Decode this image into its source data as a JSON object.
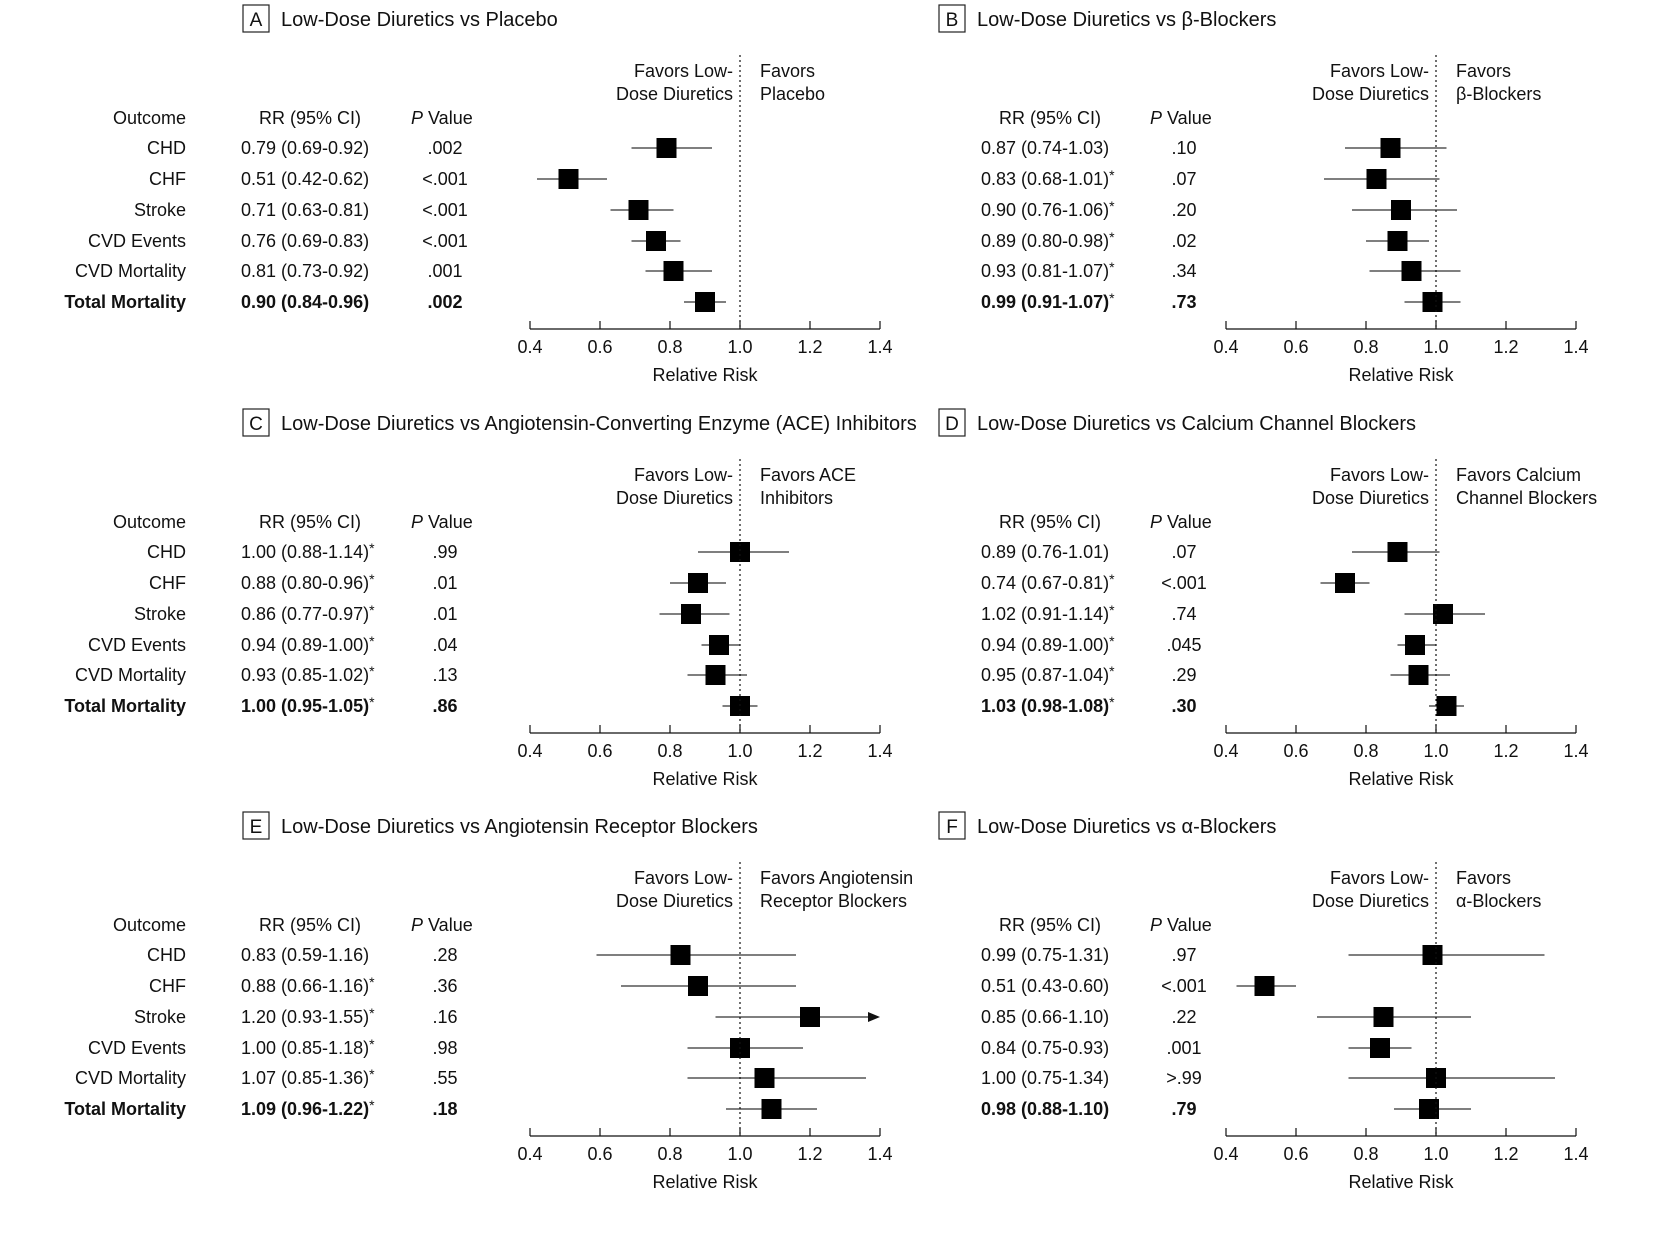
{
  "header_labels": {
    "outcome": "Outcome",
    "rr": "RR (95% CI)",
    "p_italic": "P",
    "p_rest": " Value"
  },
  "axis": {
    "ticks": [
      "0.4",
      "0.6",
      "0.8",
      "1.0",
      "1.2",
      "1.4"
    ],
    "label": "Relative Risk"
  },
  "outcomes": [
    "CHD",
    "CHF",
    "Stroke",
    "CVD Events",
    "CVD Mortality",
    "Total Mortality"
  ],
  "chart_data": [
    {
      "type": "forest",
      "panel": "A",
      "title": "Low-Dose Diuretics vs Placebo",
      "xlabel": "Relative Risk",
      "xlim": [
        0.4,
        1.4
      ],
      "reference_line": 1.0,
      "favors_left": [
        "Favors Low-",
        "Dose Diuretics"
      ],
      "favors_right": [
        "Favors",
        "Placebo"
      ],
      "rows": [
        {
          "outcome": "CHD",
          "rr": 0.79,
          "lo": 0.69,
          "hi": 0.92,
          "rr_text": "0.79 (0.69-0.92)",
          "star": false,
          "p": ".002",
          "bold": false
        },
        {
          "outcome": "CHF",
          "rr": 0.51,
          "lo": 0.42,
          "hi": 0.62,
          "rr_text": "0.51 (0.42-0.62)",
          "star": false,
          "p": "<.001",
          "bold": false
        },
        {
          "outcome": "Stroke",
          "rr": 0.71,
          "lo": 0.63,
          "hi": 0.81,
          "rr_text": "0.71 (0.63-0.81)",
          "star": false,
          "p": "<.001",
          "bold": false
        },
        {
          "outcome": "CVD Events",
          "rr": 0.76,
          "lo": 0.69,
          "hi": 0.83,
          "rr_text": "0.76 (0.69-0.83)",
          "star": false,
          "p": "<.001",
          "bold": false
        },
        {
          "outcome": "CVD Mortality",
          "rr": 0.81,
          "lo": 0.73,
          "hi": 0.92,
          "rr_text": "0.81 (0.73-0.92)",
          "star": false,
          "p": ".001",
          "bold": false
        },
        {
          "outcome": "Total Mortality",
          "rr": 0.9,
          "lo": 0.84,
          "hi": 0.96,
          "rr_text": "0.90 (0.84-0.96)",
          "star": false,
          "p": ".002",
          "bold": true
        }
      ]
    },
    {
      "type": "forest",
      "panel": "B",
      "title": "Low-Dose Diuretics vs β-Blockers",
      "xlabel": "Relative Risk",
      "xlim": [
        0.4,
        1.4
      ],
      "reference_line": 1.0,
      "favors_left": [
        "Favors Low-",
        "Dose Diuretics"
      ],
      "favors_right": [
        "Favors",
        "β-Blockers"
      ],
      "rows": [
        {
          "outcome": "CHD",
          "rr": 0.87,
          "lo": 0.74,
          "hi": 1.03,
          "rr_text": "0.87 (0.74-1.03)",
          "star": false,
          "p": ".10",
          "bold": false
        },
        {
          "outcome": "CHF",
          "rr": 0.83,
          "lo": 0.68,
          "hi": 1.01,
          "rr_text": "0.83 (0.68-1.01)",
          "star": true,
          "p": ".07",
          "bold": false
        },
        {
          "outcome": "Stroke",
          "rr": 0.9,
          "lo": 0.76,
          "hi": 1.06,
          "rr_text": "0.90 (0.76-1.06)",
          "star": true,
          "p": ".20",
          "bold": false
        },
        {
          "outcome": "CVD Events",
          "rr": 0.89,
          "lo": 0.8,
          "hi": 0.98,
          "rr_text": "0.89 (0.80-0.98)",
          "star": true,
          "p": ".02",
          "bold": false
        },
        {
          "outcome": "CVD Mortality",
          "rr": 0.93,
          "lo": 0.81,
          "hi": 1.07,
          "rr_text": "0.93 (0.81-1.07)",
          "star": true,
          "p": ".34",
          "bold": false
        },
        {
          "outcome": "Total Mortality",
          "rr": 0.99,
          "lo": 0.91,
          "hi": 1.07,
          "rr_text": "0.99 (0.91-1.07)",
          "star": true,
          "p": ".73",
          "bold": true
        }
      ]
    },
    {
      "type": "forest",
      "panel": "C",
      "title": "Low-Dose Diuretics vs Angiotensin-Converting Enzyme (ACE) Inhibitors",
      "xlabel": "Relative Risk",
      "xlim": [
        0.4,
        1.4
      ],
      "reference_line": 1.0,
      "favors_left": [
        "Favors Low-",
        "Dose Diuretics"
      ],
      "favors_right": [
        "Favors ACE",
        "Inhibitors"
      ],
      "rows": [
        {
          "outcome": "CHD",
          "rr": 1.0,
          "lo": 0.88,
          "hi": 1.14,
          "rr_text": "1.00 (0.88-1.14)",
          "star": true,
          "p": ".99",
          "bold": false
        },
        {
          "outcome": "CHF",
          "rr": 0.88,
          "lo": 0.8,
          "hi": 0.96,
          "rr_text": "0.88 (0.80-0.96)",
          "star": true,
          "p": ".01",
          "bold": false
        },
        {
          "outcome": "Stroke",
          "rr": 0.86,
          "lo": 0.77,
          "hi": 0.97,
          "rr_text": "0.86 (0.77-0.97)",
          "star": true,
          "p": ".01",
          "bold": false
        },
        {
          "outcome": "CVD Events",
          "rr": 0.94,
          "lo": 0.89,
          "hi": 1.0,
          "rr_text": "0.94 (0.89-1.00)",
          "star": true,
          "p": ".04",
          "bold": false
        },
        {
          "outcome": "CVD Mortality",
          "rr": 0.93,
          "lo": 0.85,
          "hi": 1.02,
          "rr_text": "0.93 (0.85-1.02)",
          "star": true,
          "p": ".13",
          "bold": false
        },
        {
          "outcome": "Total Mortality",
          "rr": 1.0,
          "lo": 0.95,
          "hi": 1.05,
          "rr_text": "1.00 (0.95-1.05)",
          "star": true,
          "p": ".86",
          "bold": true
        }
      ]
    },
    {
      "type": "forest",
      "panel": "D",
      "title": "Low-Dose Diuretics vs Calcium Channel Blockers",
      "xlabel": "Relative Risk",
      "xlim": [
        0.4,
        1.4
      ],
      "reference_line": 1.0,
      "favors_left": [
        "Favors Low-",
        "Dose Diuretics"
      ],
      "favors_right": [
        "Favors Calcium",
        "Channel Blockers"
      ],
      "rows": [
        {
          "outcome": "CHD",
          "rr": 0.89,
          "lo": 0.76,
          "hi": 1.01,
          "rr_text": "0.89 (0.76-1.01)",
          "star": false,
          "p": ".07",
          "bold": false
        },
        {
          "outcome": "CHF",
          "rr": 0.74,
          "lo": 0.67,
          "hi": 0.81,
          "rr_text": "0.74 (0.67-0.81)",
          "star": true,
          "p": "<.001",
          "bold": false
        },
        {
          "outcome": "Stroke",
          "rr": 1.02,
          "lo": 0.91,
          "hi": 1.14,
          "rr_text": "1.02 (0.91-1.14)",
          "star": true,
          "p": ".74",
          "bold": false
        },
        {
          "outcome": "CVD Events",
          "rr": 0.94,
          "lo": 0.89,
          "hi": 1.0,
          "rr_text": "0.94 (0.89-1.00)",
          "star": true,
          "p": ".045",
          "bold": false
        },
        {
          "outcome": "CVD Mortality",
          "rr": 0.95,
          "lo": 0.87,
          "hi": 1.04,
          "rr_text": "0.95 (0.87-1.04)",
          "star": true,
          "p": ".29",
          "bold": false
        },
        {
          "outcome": "Total Mortality",
          "rr": 1.03,
          "lo": 0.98,
          "hi": 1.08,
          "rr_text": "1.03 (0.98-1.08)",
          "star": true,
          "p": ".30",
          "bold": true
        }
      ]
    },
    {
      "type": "forest",
      "panel": "E",
      "title": "Low-Dose Diuretics vs Angiotensin Receptor Blockers",
      "xlabel": "Relative Risk",
      "xlim": [
        0.4,
        1.4
      ],
      "reference_line": 1.0,
      "favors_left": [
        "Favors Low-",
        "Dose Diuretics"
      ],
      "favors_right": [
        "Favors Angiotensin",
        "Receptor Blockers"
      ],
      "rows": [
        {
          "outcome": "CHD",
          "rr": 0.83,
          "lo": 0.59,
          "hi": 1.16,
          "rr_text": "0.83 (0.59-1.16)",
          "star": false,
          "p": ".28",
          "bold": false
        },
        {
          "outcome": "CHF",
          "rr": 0.88,
          "lo": 0.66,
          "hi": 1.16,
          "rr_text": "0.88 (0.66-1.16)",
          "star": true,
          "p": ".36",
          "bold": false
        },
        {
          "outcome": "Stroke",
          "rr": 1.2,
          "lo": 0.93,
          "hi": 1.55,
          "rr_text": "1.20 (0.93-1.55)",
          "star": true,
          "p": ".16",
          "bold": false
        },
        {
          "outcome": "CVD Events",
          "rr": 1.0,
          "lo": 0.85,
          "hi": 1.18,
          "rr_text": "1.00 (0.85-1.18)",
          "star": true,
          "p": ".98",
          "bold": false
        },
        {
          "outcome": "CVD Mortality",
          "rr": 1.07,
          "lo": 0.85,
          "hi": 1.36,
          "rr_text": "1.07 (0.85-1.36)",
          "star": true,
          "p": ".55",
          "bold": false
        },
        {
          "outcome": "Total Mortality",
          "rr": 1.09,
          "lo": 0.96,
          "hi": 1.22,
          "rr_text": "1.09 (0.96-1.22)",
          "star": true,
          "p": ".18",
          "bold": true
        }
      ]
    },
    {
      "type": "forest",
      "panel": "F",
      "title": "Low-Dose Diuretics vs α-Blockers",
      "xlabel": "Relative Risk",
      "xlim": [
        0.4,
        1.4
      ],
      "reference_line": 1.0,
      "favors_left": [
        "Favors Low-",
        "Dose Diuretics"
      ],
      "favors_right": [
        "Favors",
        "α-Blockers"
      ],
      "rows": [
        {
          "outcome": "CHD",
          "rr": 0.99,
          "lo": 0.75,
          "hi": 1.31,
          "rr_text": "0.99 (0.75-1.31)",
          "star": false,
          "p": ".97",
          "bold": false
        },
        {
          "outcome": "CHF",
          "rr": 0.51,
          "lo": 0.43,
          "hi": 0.6,
          "rr_text": "0.51 (0.43-0.60)",
          "star": false,
          "p": "<.001",
          "bold": false
        },
        {
          "outcome": "Stroke",
          "rr": 0.85,
          "lo": 0.66,
          "hi": 1.1,
          "rr_text": "0.85 (0.66-1.10)",
          "star": false,
          "p": ".22",
          "bold": false
        },
        {
          "outcome": "CVD Events",
          "rr": 0.84,
          "lo": 0.75,
          "hi": 0.93,
          "rr_text": "0.84 (0.75-0.93)",
          "star": false,
          "p": ".001",
          "bold": false
        },
        {
          "outcome": "CVD Mortality",
          "rr": 1.0,
          "lo": 0.75,
          "hi": 1.34,
          "rr_text": "1.00 (0.75-1.34)",
          "star": false,
          "p": ">.99",
          "bold": false
        },
        {
          "outcome": "Total Mortality",
          "rr": 0.98,
          "lo": 0.88,
          "hi": 1.1,
          "rr_text": "0.98 (0.88-1.10)",
          "star": false,
          "p": ".79",
          "bold": true
        }
      ]
    }
  ]
}
